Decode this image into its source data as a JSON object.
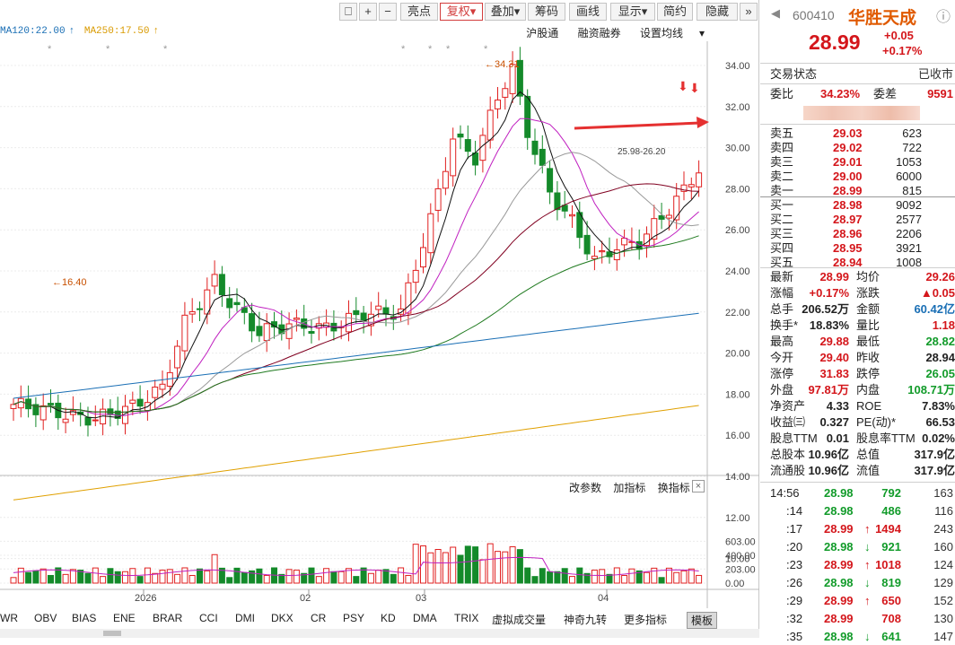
{
  "toolbar": {
    "buttons": [
      "亮点",
      "复权",
      "叠加",
      "筹码",
      "画线",
      "显示",
      "简约",
      "隐藏"
    ]
  },
  "ma_labels": [
    "MA120:22.00",
    "MA250:17.50"
  ],
  "top_links": [
    "沪股通",
    "融资融券",
    "设置均线"
  ],
  "chart_data": {
    "type": "candlestick",
    "price_axis_ticks": [
      "34.00",
      "32.00",
      "30.00",
      "28.00",
      "26.00",
      "24.00",
      "22.00",
      "20.00",
      "18.00",
      "16.00",
      "14.00",
      "12.00",
      "10.00"
    ],
    "annotations": [
      "34.31",
      "16.40",
      "25.98-26.20"
    ],
    "volume_axis_ticks": [
      "603.00",
      "400.00",
      "203.00",
      "0.00"
    ],
    "x_labels": [
      "2026",
      "02",
      "03",
      "04"
    ]
  },
  "indicator_head": [
    "改参数",
    "加指标",
    "换指标"
  ],
  "indicator_close": "×",
  "bottom_tabs": [
    "WR",
    "OBV",
    "BIAS",
    "ENE",
    "BRAR",
    "CCI",
    "DMI",
    "DKX",
    "CR",
    "PSY",
    "KD",
    "DMA",
    "TRIX",
    "虚拟成交量",
    "神奇九转",
    "更多指标",
    "模板"
  ],
  "stock": {
    "code": "600410",
    "name": "华胜天成",
    "price": "28.99",
    "change": "+0.05",
    "pct": "+0.17%"
  },
  "status": {
    "label": "交易状态",
    "value": "已收市"
  },
  "commit": {
    "ratio_label": "委比",
    "ratio": "34.23%",
    "diff_label": "委差",
    "diff": "9591"
  },
  "asks": [
    {
      "label": "卖五",
      "price": "29.03",
      "vol": "623"
    },
    {
      "label": "卖四",
      "price": "29.02",
      "vol": "722"
    },
    {
      "label": "卖三",
      "price": "29.01",
      "vol": "1053"
    },
    {
      "label": "卖二",
      "price": "29.00",
      "vol": "6000"
    },
    {
      "label": "卖一",
      "price": "28.99",
      "vol": "815"
    }
  ],
  "bids": [
    {
      "label": "买一",
      "price": "28.98",
      "vol": "9092"
    },
    {
      "label": "买二",
      "price": "28.97",
      "vol": "2577"
    },
    {
      "label": "买三",
      "price": "28.96",
      "vol": "2206"
    },
    {
      "label": "买四",
      "price": "28.95",
      "vol": "3921"
    },
    {
      "label": "买五",
      "price": "28.94",
      "vol": "1008"
    }
  ],
  "stats": [
    [
      "最新",
      "28.99",
      "r",
      "均价",
      "29.26",
      "r"
    ],
    [
      "涨幅",
      "+0.17%",
      "r",
      "涨跌",
      "▲0.05",
      "r"
    ],
    [
      "总手",
      "206.52万",
      "k",
      "金额",
      "60.42亿",
      "b"
    ],
    [
      "换手*",
      "18.83%",
      "k",
      "量比",
      "1.18",
      "r"
    ],
    [
      "最高",
      "29.88",
      "r",
      "最低",
      "28.82",
      "g"
    ],
    [
      "今开",
      "29.40",
      "r",
      "昨收",
      "28.94",
      "k"
    ],
    [
      "涨停",
      "31.83",
      "r",
      "跌停",
      "26.05",
      "g"
    ],
    [
      "外盘",
      "97.81万",
      "r",
      "内盘",
      "108.71万",
      "g"
    ],
    [
      "净资产",
      "4.33",
      "k",
      "ROE",
      "7.83%",
      "k"
    ],
    [
      "收益㈢",
      "0.327",
      "k",
      "PE(动)*",
      "66.53",
      "k"
    ],
    [
      "股息TTM",
      "0.01",
      "k",
      "股息率TTM",
      "0.02%",
      "k"
    ],
    [
      "总股本",
      "10.96亿",
      "k",
      "总值",
      "317.9亿",
      "k"
    ],
    [
      "流通股",
      "10.96亿",
      "k",
      "流值",
      "317.9亿",
      "k"
    ]
  ],
  "ticks": [
    [
      "14:56",
      "28.98",
      "g",
      "",
      "792",
      "g",
      "163"
    ],
    [
      ":14",
      "28.98",
      "g",
      "",
      "486",
      "g",
      "116"
    ],
    [
      ":17",
      "28.99",
      "r",
      "↑",
      "1494",
      "r",
      "243"
    ],
    [
      ":20",
      "28.98",
      "g",
      "↓",
      "921",
      "g",
      "160"
    ],
    [
      ":23",
      "28.99",
      "r",
      "↑",
      "1018",
      "r",
      "124"
    ],
    [
      ":26",
      "28.98",
      "g",
      "↓",
      "819",
      "g",
      "129"
    ],
    [
      ":29",
      "28.99",
      "r",
      "↑",
      "650",
      "r",
      "152"
    ],
    [
      ":32",
      "28.99",
      "r",
      "",
      "708",
      "r",
      "130"
    ],
    [
      ":35",
      "28.98",
      "g",
      "↓",
      "641",
      "g",
      "147"
    ]
  ]
}
